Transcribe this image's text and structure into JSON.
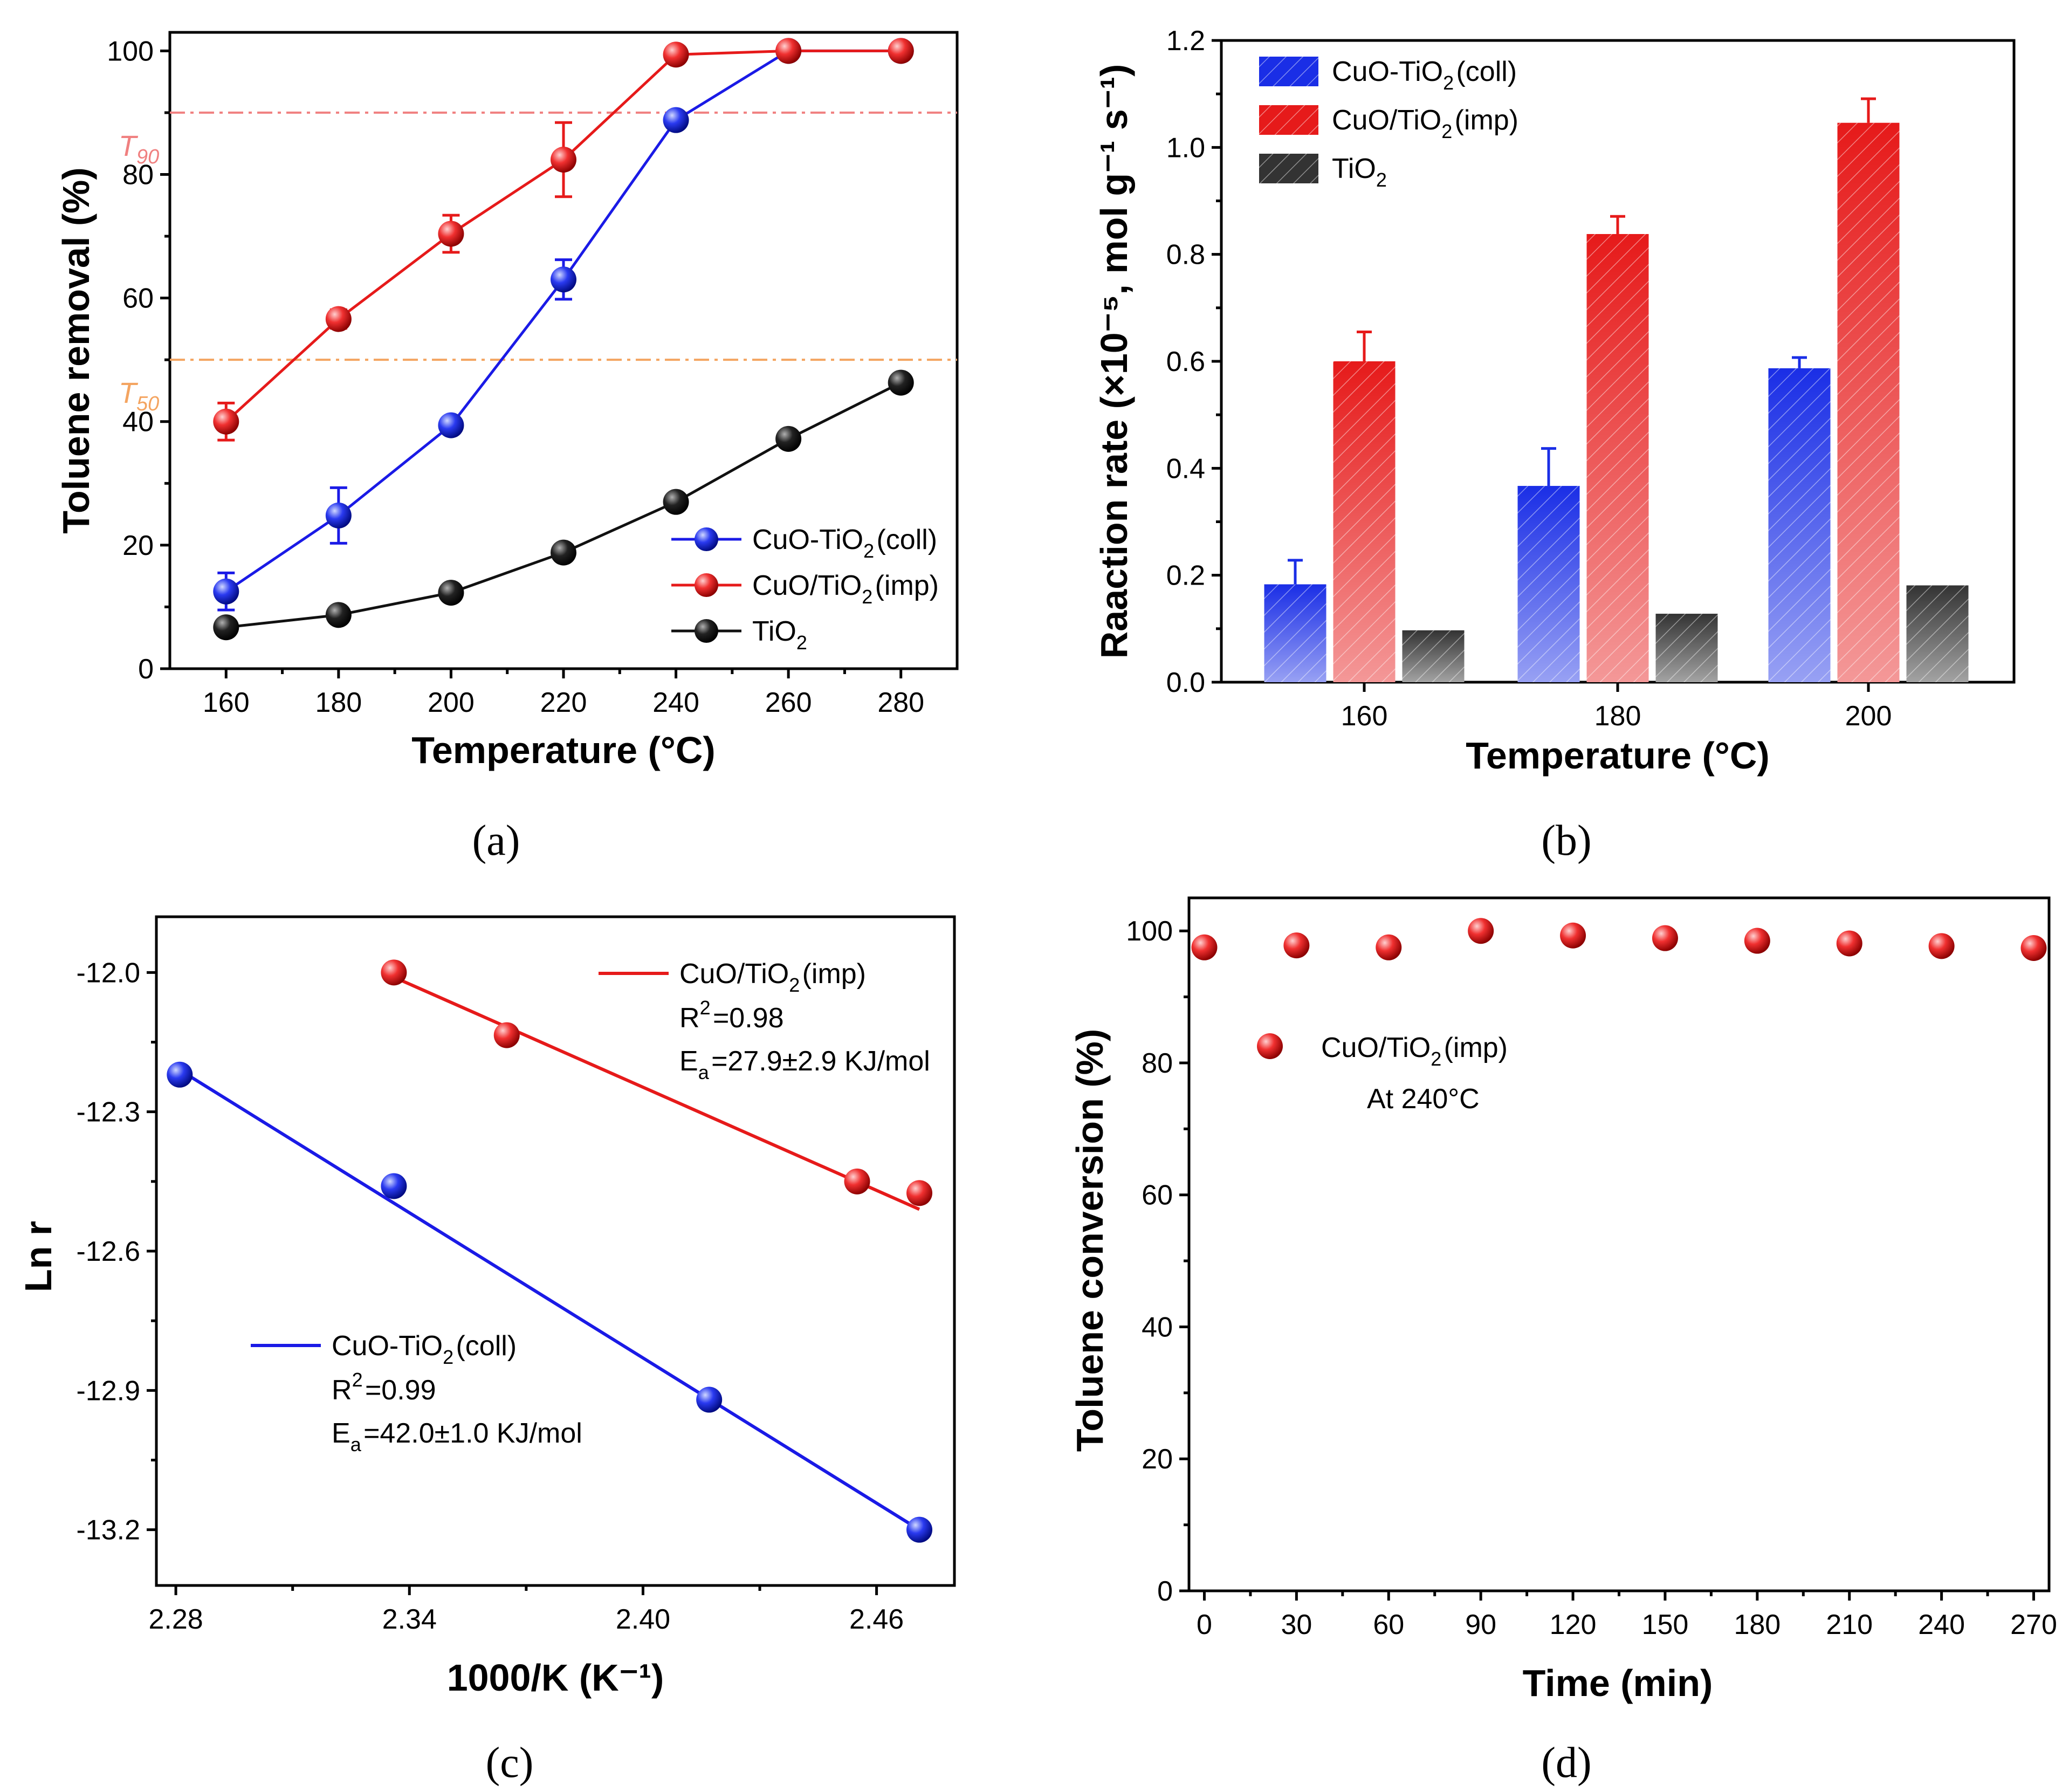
{
  "chart_data": [
    {
      "panel": "a",
      "panel_label": "(a)",
      "type": "line",
      "xlabel": "Temperature (°C)",
      "ylabel": "Toluene removal (%)",
      "xlim": [
        150,
        290
      ],
      "ylim": [
        0,
        103
      ],
      "xticks": [
        160,
        180,
        200,
        220,
        240,
        260,
        280
      ],
      "yticks": [
        0,
        20,
        40,
        60,
        80,
        100
      ],
      "hlines": [
        {
          "label": "T90",
          "main": "T",
          "sub": "90",
          "y": 90,
          "color": "#f08080"
        },
        {
          "label": "T50",
          "main": "T",
          "sub": "50",
          "y": 50,
          "color": "#f4a460"
        }
      ],
      "series": [
        {
          "name": "CuO-TiO2(coll)",
          "color": "#1a1ae6",
          "x": [
            160,
            180,
            200,
            220,
            240,
            260,
            280
          ],
          "values": [
            12.5,
            24.8,
            39.4,
            63.0,
            88.8,
            100,
            100
          ],
          "errors": [
            3,
            4.5,
            0,
            3.2,
            0,
            0,
            0
          ]
        },
        {
          "name": "CuO/TiO2(imp)",
          "color": "#e61a1a",
          "x": [
            160,
            180,
            200,
            220,
            240,
            260,
            280
          ],
          "values": [
            40.0,
            56.6,
            70.4,
            82.4,
            99.4,
            100,
            100
          ],
          "errors": [
            3,
            1.5,
            3,
            6,
            0,
            0,
            0
          ]
        },
        {
          "name": "TiO2",
          "color": "#111111",
          "x": [
            160,
            180,
            200,
            220,
            240,
            260,
            280
          ],
          "values": [
            6.7,
            8.7,
            12.3,
            18.8,
            27.0,
            37.2,
            46.3
          ],
          "errors": [
            0,
            0,
            0,
            0,
            0,
            0,
            0
          ]
        }
      ],
      "legend": [
        {
          "main": "CuO-TiO",
          "sub": "2",
          "tail": "(coll)"
        },
        {
          "main": "CuO/TiO",
          "sub": "2",
          "tail": "(imp)"
        },
        {
          "main": "TiO",
          "sub": "2",
          "tail": ""
        }
      ]
    },
    {
      "panel": "b",
      "panel_label": "(b)",
      "type": "bar",
      "xlabel": "Temperature (°C)",
      "ylabel": "Raaction rate (×10⁻⁵, mol g⁻¹ s⁻¹)",
      "categories": [
        "160",
        "180",
        "200"
      ],
      "ylim": [
        0,
        1.2
      ],
      "yticks": [
        "0.0",
        "0.2",
        "0.4",
        "0.6",
        "0.8",
        "1.0",
        "1.2"
      ],
      "series": [
        {
          "name": "CuO-TiO2(coll)",
          "color": "#1a2ee6",
          "values": [
            0.183,
            0.367,
            0.587
          ],
          "errors": [
            0.045,
            0.07,
            0.02
          ]
        },
        {
          "name": "CuO/TiO2(imp)",
          "color": "#e61a1a",
          "values": [
            0.6,
            0.838,
            1.046
          ],
          "errors": [
            0.055,
            0.033,
            0.045
          ]
        },
        {
          "name": "TiO2",
          "color": "#333333",
          "values": [
            0.097,
            0.128,
            0.181
          ],
          "errors": [
            0,
            0,
            0
          ]
        }
      ],
      "legend": [
        {
          "main": "CuO-TiO",
          "sub": "2",
          "tail": "(coll)"
        },
        {
          "main": "CuO/TiO",
          "sub": "2",
          "tail": "(imp)"
        },
        {
          "main": "TiO",
          "sub": "2",
          "tail": ""
        }
      ]
    },
    {
      "panel": "c",
      "panel_label": "(c)",
      "type": "scatter",
      "xlabel": "1000/K (K⁻¹)",
      "ylabel": "Ln r",
      "xlim": [
        2.275,
        2.48
      ],
      "ylim": [
        -13.32,
        -11.88
      ],
      "xticks": [
        "2.28",
        "2.34",
        "2.40",
        "2.46"
      ],
      "yticks": [
        "-12.0",
        "-12.3",
        "-12.6",
        "-12.9",
        "-13.2"
      ],
      "series": [
        {
          "name": "CuO/TiO2(imp)",
          "color": "#e61a1a",
          "x": [
            2.336,
            2.365,
            2.455,
            2.471
          ],
          "values": [
            -12.0,
            -12.135,
            -12.45,
            -12.475
          ],
          "fit": [
            [
              2.336,
              -12.01
            ],
            [
              2.471,
              -12.51
            ]
          ],
          "r2": "R2=0.98",
          "ea": "Ea=27.9±2.9 KJ/mol"
        },
        {
          "name": "CuO-TiO2(coll)",
          "color": "#1a1ae6",
          "x": [
            2.281,
            2.336,
            2.417,
            2.471
          ],
          "values": [
            -12.22,
            -12.46,
            -12.92,
            -13.2
          ],
          "fit": [
            [
              2.281,
              -12.21
            ],
            [
              2.471,
              -13.2
            ]
          ],
          "r2": "R2=0.99",
          "ea": "Ea=42.0±1.0 KJ/mol"
        }
      ],
      "legend_imp": {
        "main": "CuO/TiO",
        "sub": "2",
        "tail": "(imp)",
        "r2_main": "R",
        "r2_sup": "2",
        "r2_tail": "=0.98",
        "ea_main": "E",
        "ea_sub": "a",
        "ea_tail": "=27.9±2.9 KJ/mol"
      },
      "legend_coll": {
        "main": "CuO-TiO",
        "sub": "2",
        "tail": "(coll)",
        "r2_main": "R",
        "r2_sup": "2",
        "r2_tail": "=0.99",
        "ea_main": "E",
        "ea_sub": "a",
        "ea_tail": "=42.0±1.0 KJ/mol"
      }
    },
    {
      "panel": "d",
      "panel_label": "(d)",
      "type": "scatter",
      "xlabel": "Time (min)",
      "ylabel": "Toluene conversion (%)",
      "xlim": [
        -5,
        275
      ],
      "ylim": [
        0,
        105
      ],
      "xticks": [
        0,
        30,
        60,
        90,
        120,
        150,
        180,
        210,
        240,
        270
      ],
      "yticks": [
        0,
        20,
        40,
        60,
        80,
        100
      ],
      "series": [
        {
          "name": "CuO/TiO2(imp)",
          "color": "#e61a1a",
          "x": [
            0,
            30,
            60,
            90,
            120,
            150,
            180,
            210,
            240,
            270
          ],
          "values": [
            97.5,
            97.8,
            97.5,
            100,
            99.3,
            98.9,
            98.5,
            98.1,
            97.7,
            97.4
          ]
        }
      ],
      "legend": {
        "main": "CuO/TiO",
        "sub": "2",
        "tail": "(imp)"
      },
      "annotation": "At  240°C"
    }
  ]
}
